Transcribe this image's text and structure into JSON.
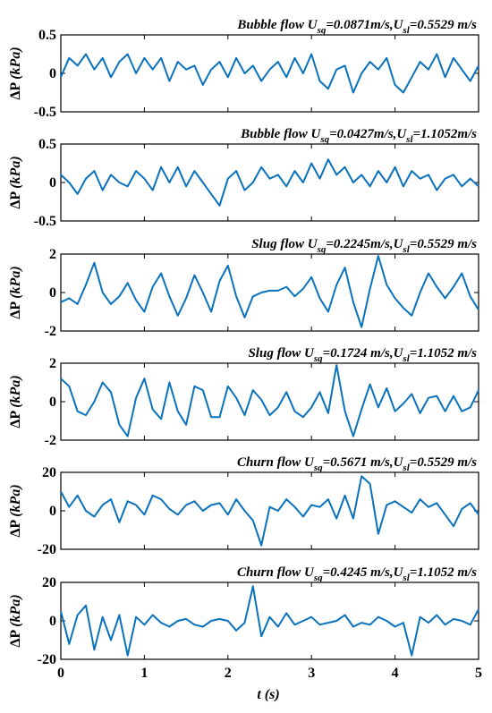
{
  "figure": {
    "xlabel_main": "t",
    "xlabel_unit": "(s)",
    "ylabel_main": "ΔP",
    "ylabel_unit": "(kPa)",
    "line_color": "#0a72bd"
  },
  "chart_data": [
    {
      "type": "line",
      "title": "Bubble flow U",
      "title_parts": [
        "Bubble flow U",
        "sg",
        "=0.0871m/s,U",
        "sl",
        "=0.5529 m/s"
      ],
      "xlim": [
        0,
        5
      ],
      "ylim": [
        -0.5,
        0.5
      ],
      "xticks": [
        "0",
        "1",
        "2",
        "3",
        "4",
        "5"
      ],
      "yticks": [
        0.5,
        0,
        -0.5
      ],
      "ytick_labels": [
        "0.5",
        "0",
        "-0.5"
      ],
      "x_step": 0.1,
      "series": [
        {
          "values": [
            -0.05,
            0.2,
            0.1,
            0.25,
            0.05,
            0.2,
            -0.05,
            0.15,
            0.25,
            0.0,
            0.2,
            0.05,
            0.2,
            -0.1,
            0.15,
            0.05,
            0.1,
            -0.15,
            0.05,
            0.15,
            -0.05,
            0.2,
            0.0,
            0.1,
            -0.1,
            0.05,
            0.15,
            -0.05,
            0.2,
            0.0,
            0.25,
            -0.1,
            -0.2,
            0.05,
            0.1,
            -0.25,
            0.0,
            0.15,
            0.05,
            0.2,
            -0.15,
            -0.25,
            -0.05,
            0.15,
            0.05,
            0.25,
            -0.05,
            0.2,
            0.05,
            -0.1,
            0.1
          ]
        }
      ]
    },
    {
      "type": "line",
      "title": "Bubble flow U",
      "title_parts": [
        "Bubble flow U",
        "sg",
        "=0.0427m/s,U",
        "sl",
        "=1.1052m/s"
      ],
      "xlim": [
        0,
        5
      ],
      "ylim": [
        -0.5,
        0.5
      ],
      "xticks": [
        "0",
        "1",
        "2",
        "3",
        "4",
        "5"
      ],
      "yticks": [
        0.5,
        0,
        -0.5
      ],
      "ytick_labels": [
        "0.5",
        "0",
        "-0.5"
      ],
      "x_step": 0.1,
      "series": [
        {
          "values": [
            0.1,
            0.0,
            -0.15,
            0.05,
            0.15,
            -0.1,
            0.1,
            0.0,
            -0.05,
            0.15,
            0.05,
            -0.1,
            0.2,
            0.0,
            0.2,
            -0.05,
            0.15,
            0.0,
            -0.15,
            -0.3,
            0.05,
            0.15,
            -0.1,
            0.0,
            0.2,
            0.05,
            0.1,
            -0.05,
            0.15,
            0.0,
            0.25,
            0.05,
            0.3,
            0.1,
            0.2,
            0.0,
            0.1,
            -0.05,
            0.15,
            0.0,
            0.2,
            -0.05,
            0.15,
            0.05,
            0.1,
            -0.1,
            0.05,
            0.1,
            -0.05,
            0.05,
            -0.05
          ]
        }
      ]
    },
    {
      "type": "line",
      "title": "Slug flow U",
      "title_parts": [
        "Slug flow U",
        "sg",
        "=0.2245m/s,U",
        "sl",
        "=0.5529 m/s"
      ],
      "xlim": [
        0,
        5
      ],
      "ylim": [
        -2,
        2
      ],
      "xticks": [
        "0",
        "1",
        "2",
        "3",
        "4",
        "5"
      ],
      "yticks": [
        2,
        0,
        -2
      ],
      "ytick_labels": [
        "2",
        "0",
        "-2"
      ],
      "x_step": 0.1,
      "series": [
        {
          "values": [
            -0.5,
            -0.3,
            -0.6,
            0.4,
            1.55,
            0.0,
            -0.6,
            -0.2,
            0.5,
            -0.4,
            -1.0,
            0.3,
            1.0,
            -0.2,
            -1.2,
            -0.3,
            0.9,
            0.0,
            -1.0,
            0.6,
            1.4,
            -0.2,
            -1.3,
            -0.2,
            0.0,
            0.1,
            0.1,
            0.3,
            -0.2,
            0.2,
            0.8,
            -0.3,
            -1.0,
            0.4,
            1.3,
            -0.5,
            -1.8,
            0.2,
            1.9,
            0.4,
            -0.3,
            -0.8,
            -1.2,
            0.0,
            1.0,
            0.3,
            -0.3,
            0.3,
            1.0,
            -0.2,
            -0.9
          ]
        }
      ]
    },
    {
      "type": "line",
      "title": "Slug flow U",
      "title_parts": [
        "Slug flow U",
        "sg",
        "=0.1724 m/s,U",
        "sl",
        "=1.1052 m/s"
      ],
      "xlim": [
        0,
        5
      ],
      "ylim": [
        -2,
        2
      ],
      "xticks": [
        "0",
        "1",
        "2",
        "3",
        "4",
        "5"
      ],
      "yticks": [
        2,
        0,
        -2
      ],
      "ytick_labels": [
        "2",
        "0",
        "-2"
      ],
      "x_step": 0.1,
      "series": [
        {
          "values": [
            1.2,
            0.8,
            -0.5,
            -0.7,
            0.0,
            1.0,
            0.5,
            -1.2,
            -1.8,
            0.2,
            1.2,
            -0.4,
            -0.9,
            1.0,
            -0.5,
            -1.2,
            0.8,
            0.6,
            -0.8,
            -0.8,
            0.8,
            0.2,
            -0.7,
            0.6,
            0.1,
            -0.7,
            -0.3,
            0.5,
            -0.5,
            -0.8,
            -0.3,
            0.5,
            -0.6,
            1.9,
            -0.5,
            -1.8,
            -0.4,
            0.9,
            -0.3,
            0.7,
            -0.5,
            -0.1,
            0.4,
            -0.6,
            0.2,
            0.3,
            -0.5,
            0.3,
            -0.5,
            -0.3,
            0.6
          ]
        }
      ]
    },
    {
      "type": "line",
      "title": "Churn flow U",
      "title_parts": [
        "Churn flow U",
        "sg",
        "=0.5671 m/s,U",
        "sl",
        "=0.5529 m/s"
      ],
      "xlim": [
        0,
        5
      ],
      "ylim": [
        -20,
        20
      ],
      "xticks": [
        "0",
        "1",
        "2",
        "3",
        "4",
        "5"
      ],
      "yticks": [
        20,
        0,
        -20
      ],
      "ytick_labels": [
        "20",
        "0",
        "-20"
      ],
      "x_step": 0.1,
      "series": [
        {
          "values": [
            10,
            2,
            8,
            0,
            -3,
            3,
            6,
            -6,
            5,
            3,
            -2,
            8,
            6,
            1,
            -2,
            3,
            5,
            0,
            3,
            4,
            -2,
            6,
            0,
            -5,
            -18,
            2,
            0,
            6,
            2,
            -3,
            3,
            2,
            6,
            -4,
            8,
            -4,
            18,
            14,
            -12,
            3,
            5,
            2,
            -1,
            6,
            2,
            4,
            -2,
            -8,
            1,
            4,
            -2
          ]
        }
      ]
    },
    {
      "type": "line",
      "title": "Churn flow U",
      "title_parts": [
        "Churn flow U",
        "sg",
        "=0.4245 m/s,U",
        "sl",
        "=1.1052 m/s"
      ],
      "xlim": [
        0,
        5
      ],
      "ylim": [
        -20,
        20
      ],
      "xticks": [
        "0",
        "1",
        "2",
        "3",
        "4",
        "5"
      ],
      "yticks": [
        20,
        0,
        -20
      ],
      "ytick_labels": [
        "20",
        "0",
        "-20"
      ],
      "x_step": 0.1,
      "series": [
        {
          "values": [
            5,
            -12,
            3,
            8,
            -15,
            2,
            -10,
            3,
            -18,
            2,
            -2,
            3,
            -1,
            -3,
            0,
            1,
            -2,
            -3,
            0,
            1,
            0,
            -5,
            -1,
            18,
            -8,
            2,
            -3,
            4,
            -2,
            0,
            2,
            -2,
            -1,
            0,
            3,
            -3,
            -1,
            -2,
            2,
            0,
            -3,
            -1,
            -18,
            2,
            -1,
            3,
            -2,
            1,
            0,
            -2,
            6
          ]
        }
      ]
    }
  ]
}
